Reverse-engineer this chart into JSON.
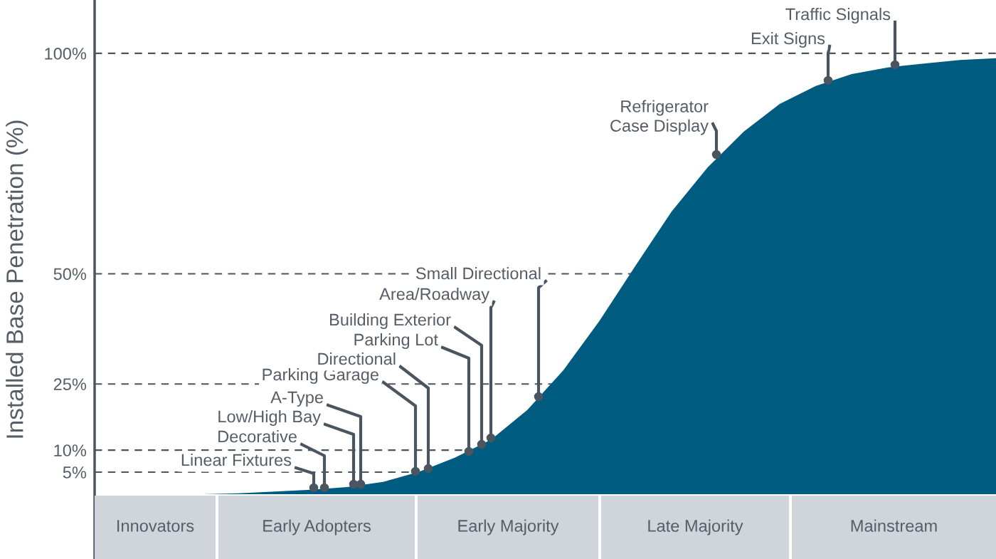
{
  "chart_data": {
    "type": "area",
    "ylabel": "Installed Base Penetration (%)",
    "categories": [
      null,
      null,
      null,
      null,
      null,
      null,
      null,
      null,
      null,
      null,
      null,
      null,
      null,
      null,
      null,
      null,
      null,
      null,
      null,
      null,
      null,
      null,
      null,
      null,
      null,
      null
    ],
    "series": [
      {
        "color": "#005b80",
        "values": [
          0,
          0,
          0,
          0,
          0.2,
          0.6,
          1.0,
          1.6,
          2.8,
          5.1,
          8.3,
          12.4,
          19.1,
          28.1,
          39.3,
          51.8,
          64.1,
          74.1,
          82.2,
          88.5,
          92.6,
          95.3,
          96.8,
          97.7,
          98.5,
          98.9
        ]
      }
    ],
    "ylim": [
      -14.7,
      112.1
    ],
    "yticks": [
      {
        "value": 5,
        "label": "5%"
      },
      {
        "value": 10,
        "label": "10%"
      },
      {
        "value": 25,
        "label": "25%"
      },
      {
        "value": 50,
        "label": "50%"
      },
      {
        "value": 100,
        "label": "100%"
      }
    ],
    "tick_labels": "y",
    "grid": "y",
    "annotations": [
      "Innovators",
      "Early Adopters",
      "Early Majority",
      "Late Majority",
      "Mainstream",
      "Linear Fixtures",
      "Decorative",
      "Low/High Bay",
      "A-Type",
      "Parking Garage",
      "Directional",
      "Parking Lot",
      "Building Exterior",
      "Area/Roadway",
      "Small Directional",
      "Refrigerator\nCase Display",
      "Exit Signs",
      "Traffic Signals"
    ]
  }
}
